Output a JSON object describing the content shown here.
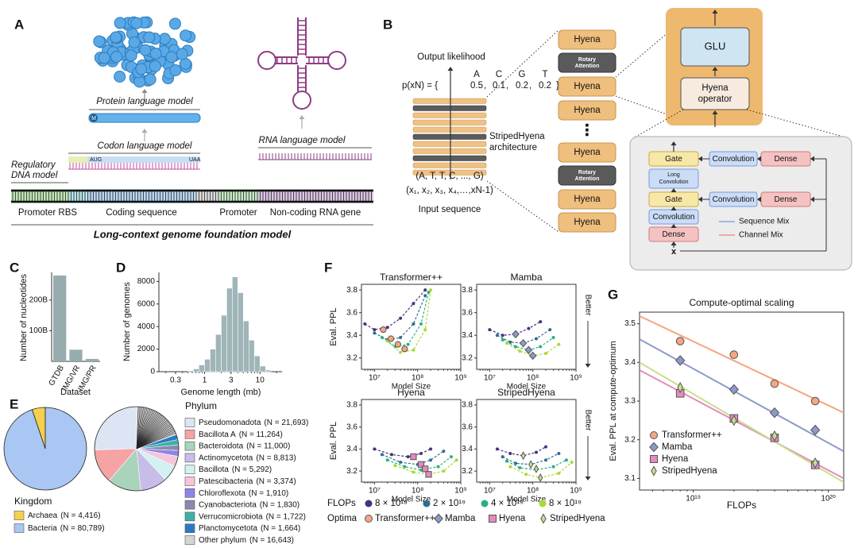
{
  "panel_a": {
    "label": "A",
    "protein_model": "Protein language model",
    "protein_start": "M",
    "codon_model": "Codon language model",
    "start_codon": "AUG",
    "stop_codon": "UAA",
    "regulatory_model": [
      "Regulatory",
      "DNA model"
    ],
    "rna_model": "RNA language model",
    "regions": [
      "Promoter RBS",
      "Coding sequence",
      "Promoter",
      "Non-coding RNA gene"
    ],
    "foundation": "Long-context genome foundation model"
  },
  "panel_b": {
    "label": "B",
    "output_title": "Output likelihood",
    "tokens": [
      "A",
      "C",
      "G",
      "T"
    ],
    "prob_prefix": "p(xN) = {",
    "probabilities": [
      0.5,
      0.1,
      0.2,
      0.2
    ],
    "separator": ",",
    "prob_suffix": "}",
    "architecture": [
      "StripedHyena",
      "architecture"
    ],
    "input_tokens": "(A, T, T, C, ..., G)",
    "input_symbols": "(x₁, x₂, x₃, x₄,…,xN-1)",
    "input_title": "Input sequence",
    "blocks": [
      [
        "Hyena"
      ],
      [
        "Rotary",
        "Attention"
      ],
      [
        "Hyena"
      ],
      [
        "Hyena"
      ],
      [
        "Hyena"
      ],
      [
        "Rotary",
        "Attention"
      ],
      [
        "Hyena"
      ],
      [
        "Hyena"
      ]
    ],
    "ellipsis": "⋮",
    "glu": "GLU",
    "operator": [
      "Hyena",
      "operator"
    ],
    "mixer": [
      {
        "lines": [
          "Gate"
        ],
        "kind": "gate"
      },
      {
        "lines": [
          "Long",
          "Convolution"
        ],
        "kind": "conv"
      },
      {
        "lines": [
          "Gate"
        ],
        "kind": "gate"
      },
      {
        "lines": [
          "Convolution"
        ],
        "kind": "conv"
      },
      {
        "lines": [
          "Dense"
        ],
        "kind": "dense"
      },
      {
        "lines": [
          "Convolution"
        ],
        "kind": "conv"
      },
      {
        "lines": [
          "Dense"
        ],
        "kind": "dense"
      },
      {
        "lines": [
          "Convolution"
        ],
        "kind": "conv"
      },
      {
        "lines": [
          "Dense"
        ],
        "kind": "dense"
      }
    ],
    "mix_legend": [
      {
        "name": "Sequence Mix",
        "color": "#9db8ea"
      },
      {
        "name": "Channel Mix",
        "color": "#f0a9a9"
      }
    ],
    "input_var": "x"
  },
  "chart_data": [
    {
      "type": "bar",
      "label": "C",
      "ylabel": "Number of nucleotides",
      "xlabel": "Dataset",
      "categories": [
        "GTDB",
        "IMG/VR",
        "IMG/PR"
      ],
      "values": [
        280,
        38,
        8
      ],
      "color": "#97acaf",
      "ylim": [
        0,
        290
      ],
      "yticks": [
        {
          "value": 100,
          "label": "100B"
        },
        {
          "value": 200,
          "label": "200B"
        }
      ]
    },
    {
      "type": "histogram",
      "label": "D",
      "ylabel": "Number of genomes",
      "xlabel": "Genome length (mb)",
      "bins": [
        0.5,
        0.63,
        0.79,
        1.0,
        1.26,
        1.58,
        2.0,
        2.51,
        3.16,
        3.98,
        5.01,
        6.31,
        7.94,
        10.0,
        12.6,
        15.8
      ],
      "values": [
        100,
        250,
        600,
        1100,
        2000,
        3300,
        5000,
        7400,
        8400,
        7000,
        4500,
        2800,
        1400,
        500,
        150
      ],
      "color": "#9fb5b7",
      "log_x": true,
      "xlim": [
        0.15,
        25
      ],
      "xticks": [
        0.3,
        1,
        3,
        10
      ],
      "ylim": [
        0,
        8800
      ],
      "yticks": [
        0,
        2000,
        4000,
        6000,
        8000
      ]
    },
    {
      "type": "pie",
      "label": "E",
      "title": "Kingdom",
      "categories": [
        "Archaea",
        "Bacteria"
      ],
      "values": [
        4416,
        80789
      ],
      "value_labels": [
        "(N = 4,416)",
        "(N = 80,789)"
      ],
      "colors": [
        "#f6d04d",
        "#a9c7f2"
      ]
    },
    {
      "type": "pie",
      "title": "Phylum",
      "categories": [
        "Pseudomonadota",
        "Bacillota A",
        "Bacteroidota",
        "Actinomycetota",
        "Bacillota",
        "Patescibacteria",
        "Chloroflexota",
        "Cyanobacteriota",
        "Verrucomicrobiota",
        "Planctomycetota",
        "Other phylum"
      ],
      "values": [
        21693,
        11264,
        11000,
        8813,
        5292,
        3374,
        1910,
        1830,
        1722,
        1664,
        16643
      ],
      "value_labels": [
        "(N = 21,693)",
        "(N = 11,264)",
        "(N = 11,000)",
        "(N = 8,813)",
        "(N = 5,292)",
        "(N = 3,374)",
        "(N = 1,910)",
        "(N = 1,830)",
        "(N = 1,722)",
        "(N = 1,664)",
        "(N = 16,643)"
      ],
      "colors": [
        "#dce5f4",
        "#f5a3a3",
        "#a9d3bb",
        "#c8bce8",
        "#d3f0f2",
        "#f6c6d9",
        "#8e83e6",
        "#8a8aaf",
        "#3fb0a6",
        "#2b79c6",
        "#d4d4d4"
      ]
    },
    {
      "type": "line",
      "label": "F",
      "ylabel": "Eval. PPL",
      "xlabel": "Model Size",
      "better": "Better",
      "log_x": true,
      "xlim": [
        5000000.0,
        1000000000.0
      ],
      "xticks": [
        {
          "value": 10000000.0,
          "label": "10⁷"
        },
        {
          "value": 100000000.0,
          "label": "10⁸"
        },
        {
          "value": 1000000000.0,
          "label": "10⁹"
        }
      ],
      "ylim": [
        3.1,
        3.85
      ],
      "yticks": [
        3.2,
        3.4,
        3.6,
        3.8
      ],
      "series_title": "FLOPs",
      "series_legend": [
        {
          "name": "8 × 10¹⁸",
          "color": "#46327e"
        },
        {
          "name": "2 × 10¹⁹",
          "color": "#2f6e8e"
        },
        {
          "name": "4 × 10¹⁹",
          "color": "#2ab07f"
        },
        {
          "name": "8 × 10¹⁹",
          "color": "#a8db34"
        }
      ],
      "optima_title": "Optima",
      "optima_legend": [
        {
          "name": "Transformer++",
          "color": "#f4a582",
          "marker": "circle"
        },
        {
          "name": "Mamba",
          "color": "#8c9ac9",
          "marker": "diamond"
        },
        {
          "name": "Hyena",
          "color": "#e48bbf",
          "marker": "square"
        },
        {
          "name": "StripedHyena",
          "color": "#c5e08a",
          "marker": "thin_diamond"
        }
      ],
      "panels": [
        {
          "title": "Transformer++",
          "series": [
            {
              "x": [
                6000000.0,
                10000000.0,
                20000000.0,
                40000000.0,
                80000000.0,
                150000000.0
              ],
              "values": [
                3.5,
                3.45,
                3.47,
                3.55,
                3.68,
                3.8
              ]
            },
            {
              "x": [
                10000000.0,
                20000000.0,
                40000000.0,
                80000000.0,
                150000000.0
              ],
              "values": [
                3.42,
                3.36,
                3.38,
                3.5,
                3.75
              ]
            },
            {
              "x": [
                15000000.0,
                30000000.0,
                60000000.0,
                120000000.0,
                180000000.0
              ],
              "values": [
                3.38,
                3.3,
                3.32,
                3.5,
                3.78
              ]
            },
            {
              "x": [
                20000000.0,
                40000000.0,
                80000000.0,
                150000000.0,
                200000000.0
              ],
              "values": [
                3.35,
                3.25,
                3.27,
                3.45,
                3.8
              ]
            }
          ],
          "optima": {
            "x": [
              16000000.0,
              24000000.0,
              35000000.0,
              50000000.0
            ],
            "values": [
              3.45,
              3.37,
              3.32,
              3.28
            ]
          }
        },
        {
          "title": "Mamba",
          "series": [
            {
              "x": [
                10000000.0,
                20000000.0,
                40000000.0,
                80000000.0,
                150000000.0
              ],
              "values": [
                3.45,
                3.4,
                3.41,
                3.46,
                3.52
              ]
            },
            {
              "x": [
                15000000.0,
                30000000.0,
                60000000.0,
                120000000.0,
                250000000.0
              ],
              "values": [
                3.4,
                3.34,
                3.33,
                3.37,
                3.45
              ]
            },
            {
              "x": [
                20000000.0,
                40000000.0,
                80000000.0,
                150000000.0,
                300000000.0
              ],
              "values": [
                3.36,
                3.3,
                3.27,
                3.3,
                3.38
              ]
            },
            {
              "x": [
                25000000.0,
                50000000.0,
                100000000.0,
                200000000.0,
                400000000.0
              ],
              "values": [
                3.33,
                3.26,
                3.22,
                3.24,
                3.32
              ]
            }
          ],
          "optima": {
            "x": [
              40000000.0,
              60000000.0,
              80000000.0,
              100000000.0
            ],
            "values": [
              3.41,
              3.33,
              3.27,
              3.22
            ]
          }
        },
        {
          "title": "Hyena",
          "series": [
            {
              "x": [
                10000000.0,
                25000000.0,
                60000000.0,
                120000000.0,
                200000000.0
              ],
              "values": [
                3.4,
                3.35,
                3.33,
                3.36,
                3.4
              ]
            },
            {
              "x": [
                15000000.0,
                40000000.0,
                100000000.0,
                200000000.0,
                400000000.0
              ],
              "values": [
                3.35,
                3.28,
                3.26,
                3.3,
                3.38
              ]
            },
            {
              "x": [
                20000000.0,
                50000000.0,
                120000000.0,
                300000000.0,
                600000000.0
              ],
              "values": [
                3.3,
                3.24,
                3.21,
                3.24,
                3.33
              ]
            },
            {
              "x": [
                30000000.0,
                80000000.0,
                180000000.0,
                400000000.0,
                800000000.0
              ],
              "values": [
                3.25,
                3.19,
                3.17,
                3.2,
                3.3
              ]
            }
          ],
          "optima": {
            "x": [
              80000000.0,
              120000000.0,
              150000000.0,
              180000000.0
            ],
            "values": [
              3.33,
              3.26,
              3.22,
              3.17
            ]
          }
        },
        {
          "title": "StripedHyena",
          "series": [
            {
              "x": [
                15000000.0,
                30000000.0,
                60000000.0,
                120000000.0,
                200000000.0
              ],
              "values": [
                3.4,
                3.36,
                3.34,
                3.37,
                3.42
              ]
            },
            {
              "x": [
                20000000.0,
                40000000.0,
                90000000.0,
                200000000.0,
                400000000.0
              ],
              "values": [
                3.33,
                3.27,
                3.26,
                3.3,
                3.36
              ]
            },
            {
              "x": [
                25000000.0,
                50000000.0,
                120000000.0,
                300000000.0,
                600000000.0
              ],
              "values": [
                3.29,
                3.23,
                3.21,
                3.24,
                3.3
              ]
            },
            {
              "x": [
                30000000.0,
                70000000.0,
                150000000.0,
                400000000.0,
                800000000.0
              ],
              "values": [
                3.24,
                3.17,
                3.14,
                3.18,
                3.28
              ]
            }
          ],
          "optima": {
            "x": [
              60000000.0,
              90000000.0,
              120000000.0,
              150000000.0
            ],
            "values": [
              3.34,
              3.26,
              3.22,
              3.14
            ]
          }
        }
      ]
    },
    {
      "type": "scatter",
      "label": "G",
      "title": "Compute-optimal scaling",
      "ylabel": "Eval. PPL at compute-optimum",
      "xlabel": "FLOPs",
      "log_x": true,
      "xlim": [
        4e+18,
        1.3e+20
      ],
      "xticks": [
        {
          "value": 1e+19,
          "label": "10¹⁹"
        },
        {
          "value": 1e+20,
          "label": "10²⁰"
        }
      ],
      "ylim": [
        3.07,
        3.53
      ],
      "yticks": [
        3.1,
        3.2,
        3.3,
        3.4,
        3.5
      ],
      "x": [
        8e+18,
        2e+19,
        4e+19,
        8e+19
      ],
      "series": [
        {
          "name": "Transformer++",
          "color": "#f4a582",
          "marker": "circle",
          "values": [
            3.455,
            3.42,
            3.345,
            3.3
          ],
          "fit": {
            "x": [
              4e+18,
              1.3e+20
            ],
            "values": [
              3.52,
              3.27
            ]
          }
        },
        {
          "name": "Mamba",
          "color": "#8c9ac9",
          "marker": "diamond",
          "values": [
            3.405,
            3.33,
            3.27,
            3.225
          ],
          "fit": {
            "x": [
              4e+18,
              1.3e+20
            ],
            "values": [
              3.46,
              3.17
            ]
          }
        },
        {
          "name": "Hyena",
          "color": "#e48bbf",
          "marker": "square",
          "values": [
            3.32,
            3.255,
            3.205,
            3.135
          ],
          "fit": {
            "x": [
              4e+18,
              1.3e+20
            ],
            "values": [
              3.38,
              3.1
            ]
          }
        },
        {
          "name": "StripedHyena",
          "color": "#c5e08a",
          "marker": "thin_diamond",
          "values": [
            3.335,
            3.25,
            3.21,
            3.14
          ],
          "fit": {
            "x": [
              4e+18,
              1.3e+20
            ],
            "values": [
              3.4,
              3.09
            ]
          }
        }
      ]
    }
  ]
}
